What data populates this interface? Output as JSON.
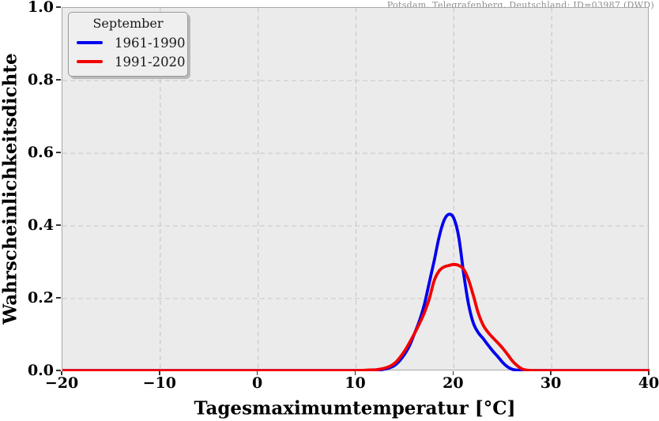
{
  "station_title": "Potsdam, Telegrafenberg, Deutschland: ID=03987 (DWD)",
  "legend": {
    "title": "September",
    "entries": [
      {
        "label": "1961-1990",
        "color": "#0000ee"
      },
      {
        "label": "1991-2020",
        "color": "#f20000"
      }
    ]
  },
  "colors": {
    "plot_background": "#ebebeb",
    "grid": "#c7c7c7",
    "spine": "#a8a8a8",
    "series_blue": "#0000ee",
    "series_red": "#f20000"
  },
  "chart_data": {
    "type": "line",
    "title": "Potsdam, Telegrafenberg, Deutschland: ID=03987 (DWD)",
    "subtitle": "September",
    "xlabel": "Tagesmaximumtemperatur [°C]",
    "ylabel": "Wahrscheinlichkeitsdichte",
    "xlim": [
      -20,
      40
    ],
    "ylim": [
      0,
      1
    ],
    "grid": true,
    "grid_style": "dashed",
    "legend_position": "upper left",
    "xticks": [
      -20,
      -10,
      0,
      10,
      20,
      30,
      40
    ],
    "xtick_labels": [
      "−20",
      "−10",
      "0",
      "10",
      "20",
      "30",
      "40"
    ],
    "yticks": [
      0,
      0.2,
      0.4,
      0.6,
      0.8,
      1.0
    ],
    "ytick_labels": [
      "0.0",
      "0.2",
      "0.4",
      "0.6",
      "0.8",
      "1.0"
    ],
    "x": [
      -20,
      -15,
      -10,
      -5,
      0,
      5,
      10,
      11,
      12,
      12.5,
      13,
      13.5,
      14,
      14.5,
      15,
      15.5,
      16,
      16.5,
      17,
      17.5,
      18,
      18.5,
      19,
      19.5,
      20,
      20.5,
      21,
      21.5,
      22,
      22.5,
      23,
      23.5,
      24,
      24.5,
      25,
      25.5,
      26,
      26.5,
      27,
      27.5,
      28,
      30,
      35,
      40
    ],
    "series": [
      {
        "name": "1961-1990",
        "color": "#0000ee",
        "values": [
          0.002,
          0.002,
          0.002,
          0.002,
          0.002,
          0.002,
          0.002,
          0.002,
          0.003,
          0.004,
          0.006,
          0.01,
          0.017,
          0.03,
          0.048,
          0.072,
          0.105,
          0.14,
          0.185,
          0.245,
          0.305,
          0.37,
          0.415,
          0.432,
          0.421,
          0.37,
          0.27,
          0.185,
          0.132,
          0.106,
          0.09,
          0.072,
          0.055,
          0.04,
          0.024,
          0.012,
          0.005,
          0.003,
          0.002,
          0.002,
          0.002,
          0.002,
          0.002,
          0.002
        ]
      },
      {
        "name": "1991-2020",
        "color": "#f20000",
        "values": [
          0.002,
          0.002,
          0.002,
          0.002,
          0.002,
          0.002,
          0.002,
          0.003,
          0.004,
          0.006,
          0.009,
          0.014,
          0.023,
          0.038,
          0.057,
          0.08,
          0.105,
          0.132,
          0.162,
          0.2,
          0.25,
          0.276,
          0.287,
          0.291,
          0.294,
          0.291,
          0.281,
          0.252,
          0.208,
          0.16,
          0.127,
          0.107,
          0.092,
          0.078,
          0.063,
          0.046,
          0.028,
          0.015,
          0.006,
          0.003,
          0.002,
          0.002,
          0.002,
          0.002
        ]
      }
    ]
  }
}
